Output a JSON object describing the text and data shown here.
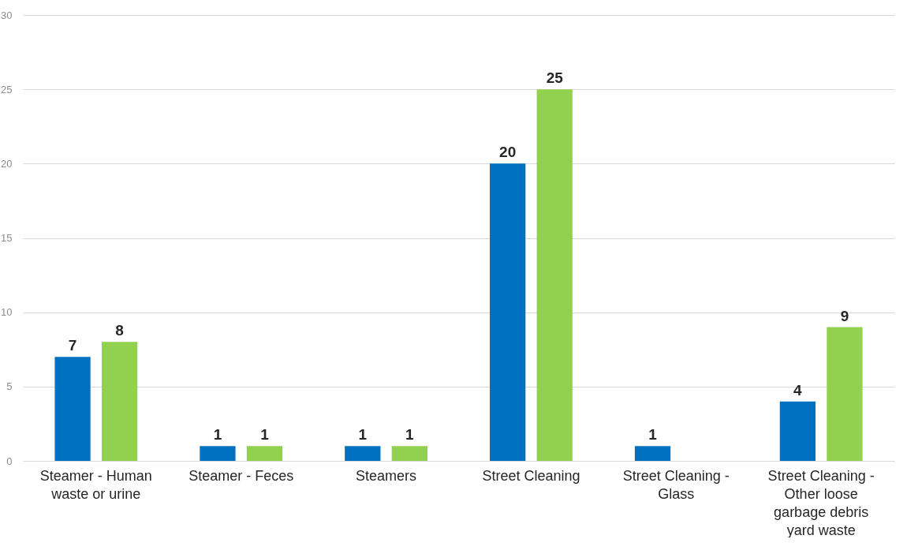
{
  "chart_data": {
    "type": "bar",
    "categories": [
      "Steamer -  Human waste or urine",
      "Steamer - Feces",
      "Steamers",
      "Street Cleaning",
      "Street Cleaning - Glass",
      "Street Cleaning - Other loose garbage debris yard waste"
    ],
    "series": [
      {
        "color": "#0070c0",
        "values": [
          7,
          1,
          1,
          20,
          1,
          4
        ]
      },
      {
        "color": "#92d050",
        "values": [
          8,
          1,
          1,
          25,
          null,
          9
        ]
      }
    ],
    "ylim": [
      0,
      30
    ],
    "yticks": [
      0,
      5,
      10,
      15,
      20,
      25,
      30
    ],
    "grid": "y",
    "legend": false,
    "data_labels": true
  }
}
